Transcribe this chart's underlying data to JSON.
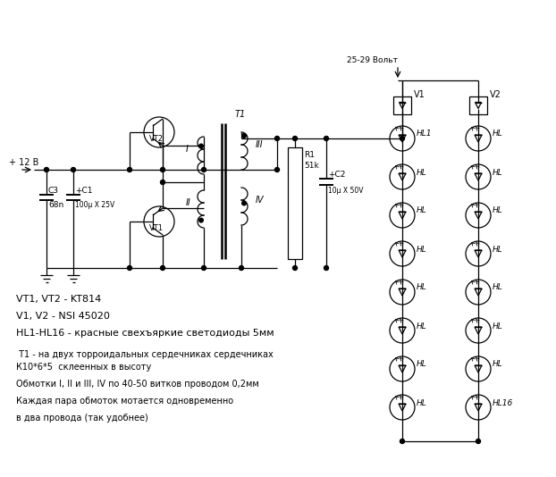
{
  "bg_color": "#ffffff",
  "line_color": "#000000",
  "text_color": "#000000",
  "figsize": [
    6.22,
    5.34
  ],
  "dpi": 100,
  "notes": [
    "VT1, VT2 - KT814",
    "V1, V2 - NSI 45020",
    "HL1-HL16 - красные свехъяркие светодиоды 5мм",
    " T1 - на двух торроидальных сердечниках сердечниках",
    "К10*6*5  склеенных в высоту",
    "Обмотки I, II и III, IV по 40-50 витков проводом 0,2мм",
    "Каждая пара обмоток мотается одновременно",
    "в два провода (так удобнее)"
  ],
  "voltage_label": "25-29 Вольт",
  "supply_label": "+ 12 В"
}
